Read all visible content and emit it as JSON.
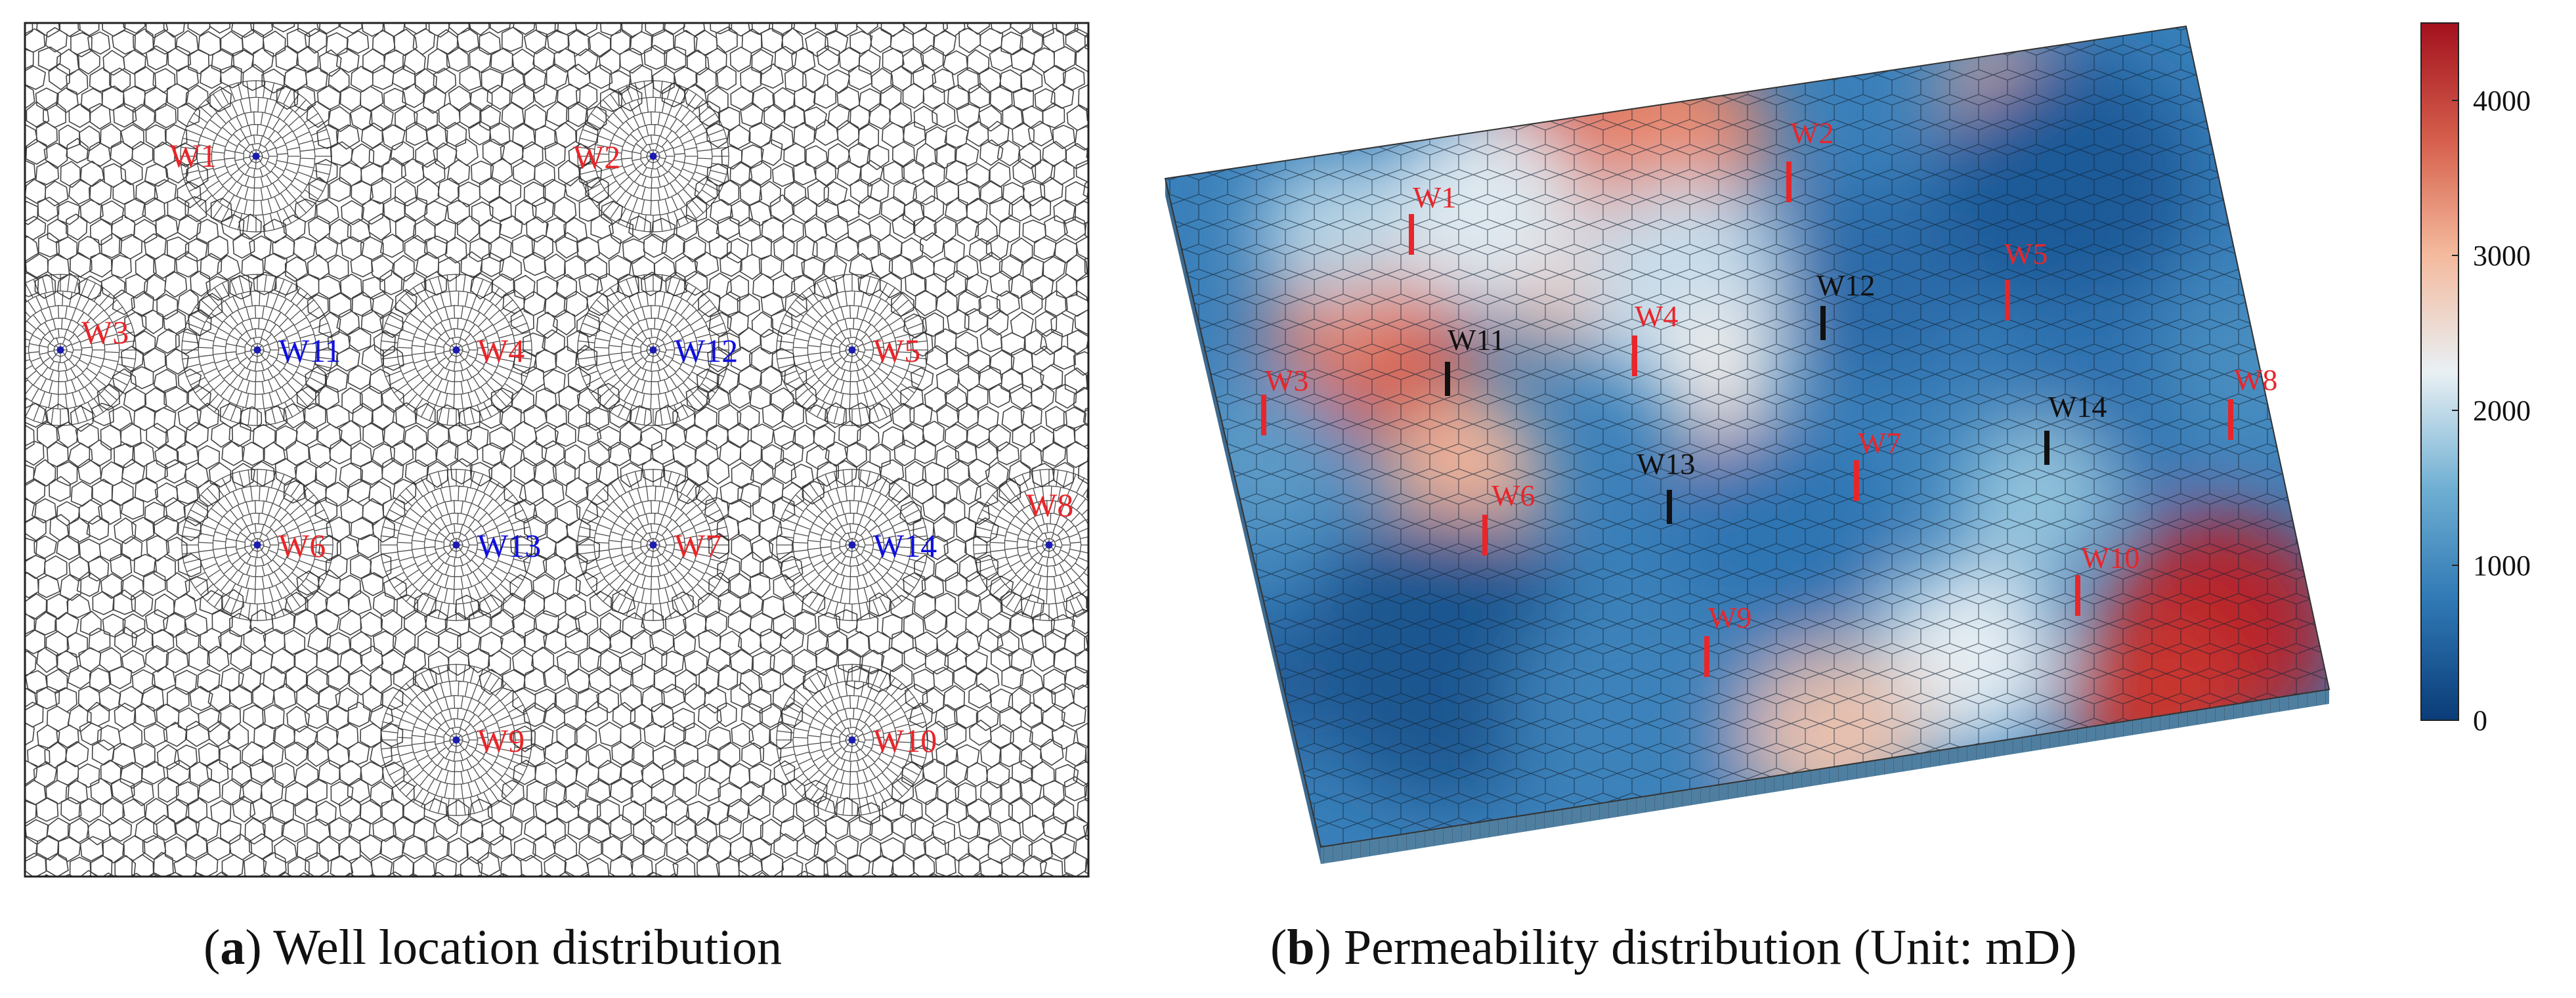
{
  "panel_a": {
    "caption_letter": "a",
    "caption_text": "Well location distribution",
    "wells": [
      {
        "name": "W1",
        "type": "producer"
      },
      {
        "name": "W2",
        "type": "producer"
      },
      {
        "name": "W3",
        "type": "producer"
      },
      {
        "name": "W11",
        "type": "injector"
      },
      {
        "name": "W4",
        "type": "producer"
      },
      {
        "name": "W12",
        "type": "injector"
      },
      {
        "name": "W5",
        "type": "producer"
      },
      {
        "name": "W8",
        "type": "producer"
      },
      {
        "name": "W6",
        "type": "producer"
      },
      {
        "name": "W13",
        "type": "injector"
      },
      {
        "name": "W7",
        "type": "producer"
      },
      {
        "name": "W14",
        "type": "injector"
      },
      {
        "name": "W9",
        "type": "producer"
      },
      {
        "name": "W10",
        "type": "producer"
      }
    ]
  },
  "panel_b": {
    "caption_letter": "b",
    "caption_text": "Permeability distribution (Unit: mD)",
    "wells": [
      {
        "name": "W1",
        "type": "producer"
      },
      {
        "name": "W2",
        "type": "producer"
      },
      {
        "name": "W3",
        "type": "producer"
      },
      {
        "name": "W4",
        "type": "producer"
      },
      {
        "name": "W5",
        "type": "producer"
      },
      {
        "name": "W6",
        "type": "producer"
      },
      {
        "name": "W7",
        "type": "producer"
      },
      {
        "name": "W8",
        "type": "producer"
      },
      {
        "name": "W9",
        "type": "producer"
      },
      {
        "name": "W10",
        "type": "producer"
      },
      {
        "name": "W11",
        "type": "injector"
      },
      {
        "name": "W12",
        "type": "injector"
      },
      {
        "name": "W13",
        "type": "injector"
      },
      {
        "name": "W14",
        "type": "injector"
      }
    ],
    "colorbar": {
      "min": 0,
      "max": 4500,
      "ticks": [
        "0",
        "1000",
        "2000",
        "3000",
        "4000"
      ],
      "tick_values": [
        0,
        1000,
        2000,
        3000,
        4000
      ],
      "colors": [
        "#0a3c78",
        "#2f78b4",
        "#6eaed2",
        "#e9f0f4",
        "#f4b99c",
        "#d6604d",
        "#a3111e"
      ]
    }
  },
  "colors": {
    "producer_label": "#e8262a",
    "injector_label_a": "#1010e0",
    "injector_label_b": "#111111",
    "mesh_line": "#222222"
  }
}
